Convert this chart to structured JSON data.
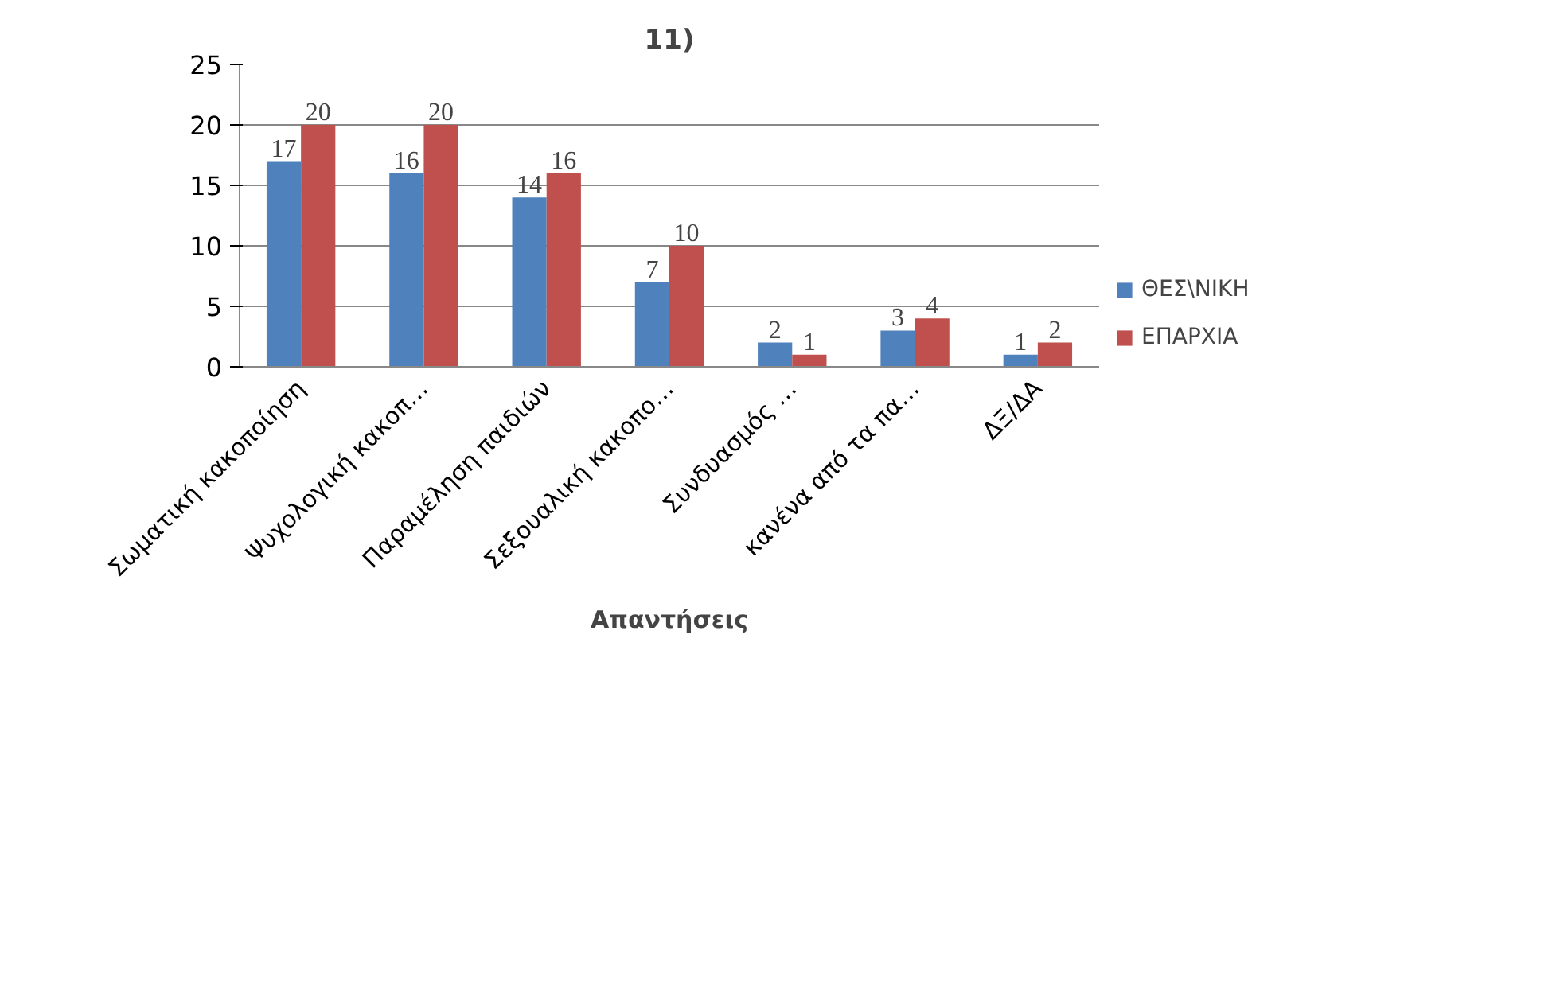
{
  "chart_data": {
    "type": "bar",
    "title": "11)",
    "xlabel": "Απαντήσεις",
    "categories": [
      "Σωματική κακοποίηση",
      "Ψυχολογική κακοπ…",
      "Παραμέληση παιδιών",
      "Σεξουαλική κακοπο…",
      "Συνδυασμός …",
      "κανένα από τα πα…",
      "ΔΞ/ΔΑ"
    ],
    "series": [
      {
        "name": "ΘΕΣ\\ΝΙΚΗ",
        "color": "#4f81bd",
        "values": [
          17,
          16,
          14,
          7,
          2,
          3,
          1
        ]
      },
      {
        "name": "ΕΠΑΡΧΙΑ",
        "color": "#c0504d",
        "values": [
          20,
          20,
          16,
          10,
          1,
          4,
          2
        ]
      }
    ],
    "ylim": [
      0,
      25
    ],
    "yticks": [
      0,
      5,
      10,
      15,
      20,
      25
    ],
    "grid": "y",
    "legend": "right",
    "data_labels": true
  }
}
